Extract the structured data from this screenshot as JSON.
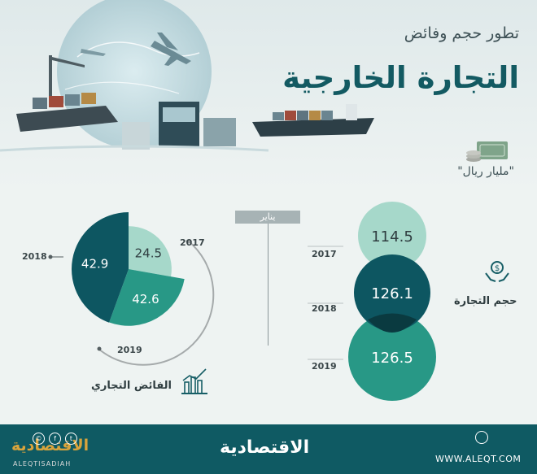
{
  "header": {
    "subtitle": "تطور حجم وفائض",
    "title": "التجارة الخارجية",
    "unit": "\"مليار ريال\""
  },
  "month_label": "يناير",
  "icons": [
    "money-stack-icon",
    "hands-dollar-icon",
    "bar-chart-icon",
    "globe-icon",
    "facebook-icon",
    "twitter-icon",
    "copyright-icon"
  ],
  "colors": {
    "dark": "#0d5661",
    "mid": "#289886",
    "light": "#a6d8ca",
    "footer": "#0f5a63"
  },
  "chart_data": [
    {
      "type": "pie",
      "title": "الفائض التجاري",
      "categories": [
        "2017",
        "2018",
        "2019"
      ],
      "values": [
        24.5,
        42.9,
        42.6
      ]
    },
    {
      "type": "bubble",
      "title": "حجم التجارة",
      "categories": [
        "2017",
        "2018",
        "2019"
      ],
      "values": [
        114.5,
        126.1,
        126.5
      ]
    }
  ],
  "footer": {
    "logo": "الاقتصادية",
    "logo_left": "الاقتصادية",
    "handle": "ALEQTISADIAH",
    "website": "WWW.ALEQT.COM"
  }
}
